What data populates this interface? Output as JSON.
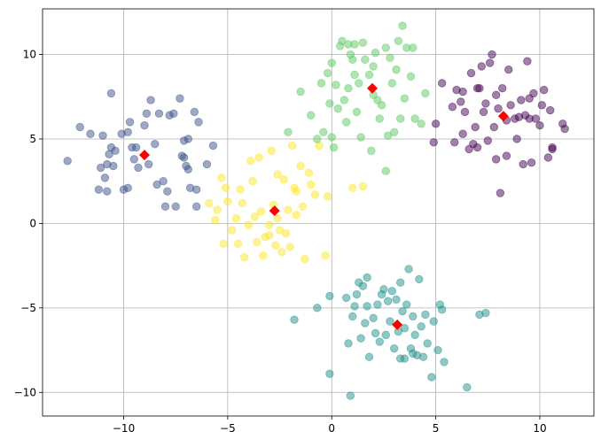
{
  "chart_data": {
    "type": "scatter",
    "title": "",
    "xlabel": "",
    "ylabel": "",
    "xlim": [
      -13.9,
      12.6
    ],
    "ylim": [
      -11.4,
      12.7
    ],
    "xticks": [
      -10,
      -5,
      0,
      5,
      10
    ],
    "yticks": [
      -10,
      -5,
      0,
      5,
      10
    ],
    "grid": true,
    "legend": "none",
    "point_alpha": 0.5,
    "clusters": [
      {
        "color": "#3b528b",
        "points": [
          [
            -12.7,
            3.7
          ],
          [
            -12.1,
            5.7
          ],
          [
            -11.6,
            5.3
          ],
          [
            -11.2,
            2.0
          ],
          [
            -11.1,
            3.3
          ],
          [
            -11.0,
            5.2
          ],
          [
            -10.9,
            2.7
          ],
          [
            -10.8,
            1.9
          ],
          [
            -10.8,
            3.5
          ],
          [
            -10.7,
            4.1
          ],
          [
            -10.6,
            7.7
          ],
          [
            -10.6,
            4.5
          ],
          [
            -10.5,
            3.4
          ],
          [
            -10.4,
            4.3
          ],
          [
            -10.1,
            5.3
          ],
          [
            -10.0,
            2.0
          ],
          [
            -9.8,
            5.4
          ],
          [
            -9.8,
            2.1
          ],
          [
            -9.7,
            6.0
          ],
          [
            -9.6,
            4.5
          ],
          [
            -9.5,
            3.8
          ],
          [
            -9.4,
            4.5
          ],
          [
            -9.3,
            3.3
          ],
          [
            -9.0,
            5.8
          ],
          [
            -8.9,
            6.5
          ],
          [
            -8.8,
            3.5
          ],
          [
            -8.7,
            7.3
          ],
          [
            -8.5,
            4.7
          ],
          [
            -8.4,
            2.3
          ],
          [
            -8.3,
            6.5
          ],
          [
            -8.1,
            2.5
          ],
          [
            -8.0,
            1.0
          ],
          [
            -7.9,
            1.9
          ],
          [
            -7.8,
            6.4
          ],
          [
            -7.6,
            6.5
          ],
          [
            -7.5,
            1.0
          ],
          [
            -7.3,
            7.4
          ],
          [
            -7.2,
            4.0
          ],
          [
            -7.1,
            4.9
          ],
          [
            -7.0,
            3.4
          ],
          [
            -6.9,
            5.0
          ],
          [
            -6.9,
            3.2
          ],
          [
            -6.8,
            2.1
          ],
          [
            -6.6,
            6.6
          ],
          [
            -6.5,
            1.0
          ],
          [
            -6.5,
            2.0
          ],
          [
            -6.4,
            6.0
          ],
          [
            -6.0,
            3.5
          ],
          [
            -5.7,
            4.6
          ],
          [
            -7.1,
            3.9
          ]
        ]
      },
      {
        "color": "#fde725",
        "points": [
          [
            -5.9,
            1.2
          ],
          [
            -5.6,
            0.2
          ],
          [
            -5.5,
            0.8
          ],
          [
            -5.3,
            2.7
          ],
          [
            -5.2,
            -1.2
          ],
          [
            -5.1,
            2.1
          ],
          [
            -5.0,
            1.3
          ],
          [
            -4.8,
            -0.4
          ],
          [
            -4.6,
            0.3
          ],
          [
            -4.5,
            -1.2
          ],
          [
            -4.4,
            2.0
          ],
          [
            -4.3,
            1.2
          ],
          [
            -4.2,
            -2.0
          ],
          [
            -4.0,
            -0.1
          ],
          [
            -3.9,
            3.7
          ],
          [
            -3.8,
            2.5
          ],
          [
            -3.7,
            0.4
          ],
          [
            -3.5,
            3.9
          ],
          [
            -3.4,
            0.7
          ],
          [
            -3.3,
            -1.9
          ],
          [
            -3.2,
            -0.8
          ],
          [
            -3.0,
            -0.1
          ],
          [
            -2.9,
            4.3
          ],
          [
            -2.8,
            1.1
          ],
          [
            -2.7,
            -1.3
          ],
          [
            -2.6,
            2.9
          ],
          [
            -2.5,
            -0.4
          ],
          [
            -2.4,
            -1.7
          ],
          [
            -2.3,
            2.6
          ],
          [
            -2.1,
            0.8
          ],
          [
            -2.0,
            -1.4
          ],
          [
            -1.9,
            4.6
          ],
          [
            -1.8,
            2.1
          ],
          [
            -1.7,
            1.9
          ],
          [
            -1.7,
            0.5
          ],
          [
            -1.5,
            3.4
          ],
          [
            -1.4,
            1.0
          ],
          [
            -1.3,
            -2.1
          ],
          [
            -1.1,
            3.0
          ],
          [
            -1.0,
            2.3
          ],
          [
            -0.8,
            1.7
          ],
          [
            -0.6,
            4.6
          ],
          [
            -0.3,
            -1.9
          ],
          [
            -0.2,
            1.6
          ],
          [
            1.0,
            2.1
          ],
          [
            1.5,
            2.2
          ],
          [
            -3.6,
            -1.1
          ],
          [
            -3.0,
            -0.7
          ],
          [
            -2.2,
            -0.6
          ],
          [
            -2.6,
            0.3
          ]
        ]
      },
      {
        "color": "#5ec962",
        "points": [
          [
            -2.1,
            5.4
          ],
          [
            -1.5,
            7.8
          ],
          [
            -1.0,
            6.4
          ],
          [
            -0.7,
            5.0
          ],
          [
            -0.5,
            8.3
          ],
          [
            -0.4,
            5.4
          ],
          [
            -0.2,
            8.9
          ],
          [
            -0.1,
            7.1
          ],
          [
            0.0,
            9.5
          ],
          [
            0.0,
            5.1
          ],
          [
            0.1,
            4.5
          ],
          [
            0.2,
            8.2
          ],
          [
            0.3,
            6.8
          ],
          [
            0.4,
            10.5
          ],
          [
            0.5,
            10.8
          ],
          [
            0.6,
            7.3
          ],
          [
            0.7,
            6.0
          ],
          [
            0.8,
            10.6
          ],
          [
            0.8,
            8.0
          ],
          [
            1.0,
            9.7
          ],
          [
            1.1,
            8.8
          ],
          [
            1.1,
            10.6
          ],
          [
            1.2,
            6.6
          ],
          [
            1.3,
            8.3
          ],
          [
            1.4,
            5.1
          ],
          [
            1.5,
            10.7
          ],
          [
            1.6,
            9.7
          ],
          [
            1.8,
            8.8
          ],
          [
            2.0,
            7.6
          ],
          [
            2.0,
            9.3
          ],
          [
            2.1,
            10.1
          ],
          [
            2.2,
            7.3
          ],
          [
            2.3,
            6.2
          ],
          [
            2.4,
            7.0
          ],
          [
            2.6,
            10.4
          ],
          [
            2.7,
            5.2
          ],
          [
            2.9,
            8.3
          ],
          [
            3.0,
            5.4
          ],
          [
            3.1,
            9.1
          ],
          [
            3.2,
            10.8
          ],
          [
            3.3,
            6.2
          ],
          [
            3.4,
            11.7
          ],
          [
            3.5,
            7.4
          ],
          [
            3.6,
            10.4
          ],
          [
            3.8,
            8.7
          ],
          [
            3.9,
            10.4
          ],
          [
            4.0,
            6.2
          ],
          [
            4.5,
            7.7
          ],
          [
            4.3,
            5.9
          ],
          [
            2.6,
            3.1
          ],
          [
            1.9,
            4.3
          ],
          [
            0.9,
            10.0
          ],
          [
            2.8,
            9.8
          ]
        ]
      },
      {
        "color": "#440154",
        "points": [
          [
            4.9,
            4.8
          ],
          [
            5.0,
            5.9
          ],
          [
            5.3,
            8.3
          ],
          [
            5.8,
            6.9
          ],
          [
            5.9,
            4.8
          ],
          [
            6.0,
            7.9
          ],
          [
            6.2,
            7.2
          ],
          [
            6.3,
            5.3
          ],
          [
            6.4,
            6.6
          ],
          [
            6.6,
            4.4
          ],
          [
            6.7,
            8.9
          ],
          [
            6.9,
            5.7
          ],
          [
            7.0,
            4.5
          ],
          [
            7.1,
            8.0
          ],
          [
            7.2,
            9.3
          ],
          [
            7.3,
            6.6
          ],
          [
            7.4,
            7.1
          ],
          [
            7.5,
            4.9
          ],
          [
            7.6,
            9.5
          ],
          [
            7.7,
            10.0
          ],
          [
            7.8,
            5.7
          ],
          [
            7.9,
            3.8
          ],
          [
            7.9,
            7.6
          ],
          [
            8.0,
            6.8
          ],
          [
            8.1,
            1.8
          ],
          [
            8.2,
            8.0
          ],
          [
            8.4,
            4.0
          ],
          [
            8.4,
            6.1
          ],
          [
            8.5,
            9.1
          ],
          [
            8.6,
            7.0
          ],
          [
            8.8,
            6.2
          ],
          [
            8.9,
            5.0
          ],
          [
            9.0,
            6.3
          ],
          [
            9.1,
            7.3
          ],
          [
            9.2,
            3.5
          ],
          [
            9.3,
            6.4
          ],
          [
            9.4,
            9.6
          ],
          [
            9.5,
            6.2
          ],
          [
            9.6,
            3.6
          ],
          [
            9.7,
            7.7
          ],
          [
            9.8,
            6.2
          ],
          [
            10.0,
            5.8
          ],
          [
            10.1,
            7.0
          ],
          [
            10.2,
            7.9
          ],
          [
            10.4,
            3.9
          ],
          [
            10.5,
            6.7
          ],
          [
            10.6,
            4.4
          ],
          [
            11.1,
            5.9
          ],
          [
            11.2,
            5.6
          ],
          [
            10.6,
            4.5
          ],
          [
            9.5,
            7.4
          ],
          [
            7.0,
            8.0
          ],
          [
            6.8,
            4.7
          ],
          [
            6.3,
            7.8
          ]
        ]
      },
      {
        "color": "#21918c",
        "points": [
          [
            -1.8,
            -5.7
          ],
          [
            -0.7,
            -5.0
          ],
          [
            -0.1,
            -8.9
          ],
          [
            -0.1,
            -4.3
          ],
          [
            0.7,
            -4.4
          ],
          [
            0.8,
            -7.1
          ],
          [
            0.9,
            -10.2
          ],
          [
            1.0,
            -5.5
          ],
          [
            1.1,
            -4.9
          ],
          [
            1.2,
            -4.2
          ],
          [
            1.3,
            -3.5
          ],
          [
            1.4,
            -6.8
          ],
          [
            1.5,
            -3.7
          ],
          [
            1.6,
            -5.9
          ],
          [
            1.7,
            -3.2
          ],
          [
            1.7,
            -4.9
          ],
          [
            1.8,
            -7.9
          ],
          [
            2.0,
            -5.6
          ],
          [
            2.1,
            -6.5
          ],
          [
            2.2,
            -4.8
          ],
          [
            2.3,
            -7.0
          ],
          [
            2.4,
            -4.2
          ],
          [
            2.5,
            -3.9
          ],
          [
            2.6,
            -6.6
          ],
          [
            2.7,
            -4.6
          ],
          [
            2.8,
            -5.8
          ],
          [
            2.9,
            -4.0
          ],
          [
            3.0,
            -7.4
          ],
          [
            3.1,
            -4.5
          ],
          [
            3.2,
            -6.4
          ],
          [
            3.3,
            -8.0
          ],
          [
            3.3,
            -3.5
          ],
          [
            3.4,
            -5.2
          ],
          [
            3.5,
            -6.2
          ],
          [
            3.6,
            -4.8
          ],
          [
            3.7,
            -2.7
          ],
          [
            3.8,
            -7.4
          ],
          [
            3.9,
            -5.5
          ],
          [
            4.0,
            -6.6
          ],
          [
            4.1,
            -7.8
          ],
          [
            4.2,
            -3.3
          ],
          [
            4.3,
            -6.1
          ],
          [
            4.4,
            -7.9
          ],
          [
            4.5,
            -5.4
          ],
          [
            4.6,
            -7.1
          ],
          [
            4.8,
            -9.1
          ],
          [
            4.9,
            -5.8
          ],
          [
            5.1,
            -7.5
          ],
          [
            5.2,
            -4.8
          ],
          [
            5.3,
            -5.1
          ],
          [
            5.4,
            -8.2
          ],
          [
            6.5,
            -9.7
          ],
          [
            7.1,
            -5.4
          ],
          [
            7.4,
            -5.3
          ],
          [
            3.5,
            -8.0
          ],
          [
            3.9,
            -7.7
          ]
        ]
      }
    ],
    "centroids": {
      "color": "#ff0000",
      "marker": "diamond",
      "points": [
        [
          -9.0,
          4.05
        ],
        [
          -2.75,
          0.75
        ],
        [
          1.95,
          8.0
        ],
        [
          8.25,
          6.35
        ],
        [
          3.15,
          -6.0
        ]
      ]
    }
  }
}
